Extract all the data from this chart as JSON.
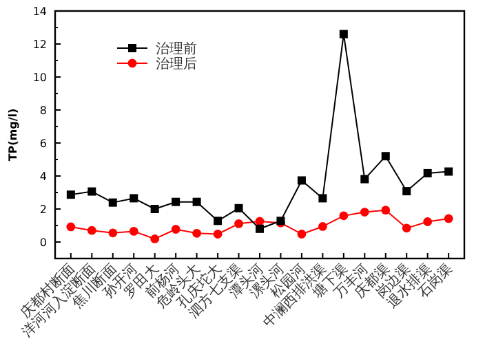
{
  "chart_data": {
    "type": "line",
    "ylabel": "TP(mg/l)",
    "categories": [
      "庆都村断面",
      "洋河河入淀断面",
      "焦川断面",
      "孙开河",
      "罗田大",
      "前杨河",
      "危岭头大",
      "孔庆坨大",
      "泗方七支渠",
      "潭头河",
      "漯头河",
      "松园河",
      "中澜西排洪渠",
      "塘下渠",
      "万丰河",
      "庆都渠",
      "岗边渠",
      "退水排渠",
      "石岗渠"
    ],
    "series": [
      {
        "name": "治理前",
        "color": "#000000",
        "marker": "square",
        "values": [
          2.87,
          3.06,
          2.39,
          2.65,
          2.0,
          2.43,
          2.43,
          1.28,
          2.05,
          0.8,
          1.28,
          3.73,
          2.65,
          12.6,
          3.81,
          5.2,
          3.08,
          4.17,
          4.27
        ]
      },
      {
        "name": "治理后",
        "color": "#ff0000",
        "marker": "circle",
        "values": [
          0.92,
          0.7,
          0.55,
          0.65,
          0.19,
          0.77,
          0.53,
          0.48,
          1.11,
          1.25,
          1.16,
          0.48,
          0.94,
          1.59,
          1.81,
          1.93,
          0.84,
          1.23,
          1.42
        ]
      }
    ],
    "ylim": [
      -1,
      14
    ],
    "yticks": [
      0,
      2,
      4,
      6,
      8,
      10,
      12,
      14
    ],
    "legend": "top left",
    "grid": false
  }
}
